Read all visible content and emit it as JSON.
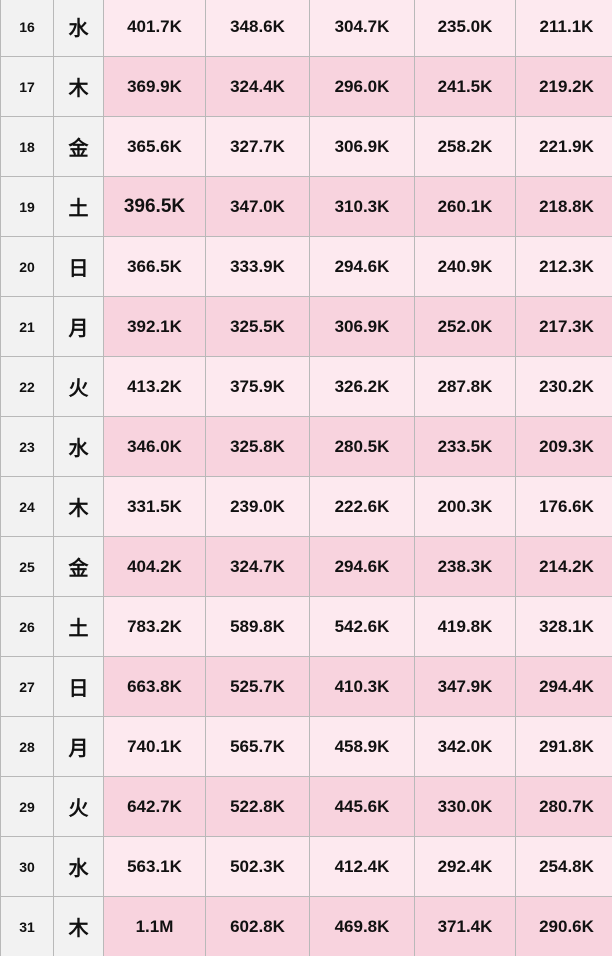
{
  "table": {
    "rows": [
      {
        "day": "16",
        "weekday": "水",
        "values": [
          "401.7K",
          "348.6K",
          "304.7K",
          "235.0K",
          "211.1K"
        ]
      },
      {
        "day": "17",
        "weekday": "木",
        "values": [
          "369.9K",
          "324.4K",
          "296.0K",
          "241.5K",
          "219.2K"
        ]
      },
      {
        "day": "18",
        "weekday": "金",
        "values": [
          "365.6K",
          "327.7K",
          "306.9K",
          "258.2K",
          "221.9K"
        ]
      },
      {
        "day": "19",
        "weekday": "土",
        "values": [
          "396.5K",
          "347.0K",
          "310.3K",
          "260.1K",
          "218.8K"
        ]
      },
      {
        "day": "20",
        "weekday": "日",
        "values": [
          "366.5K",
          "333.9K",
          "294.6K",
          "240.9K",
          "212.3K"
        ]
      },
      {
        "day": "21",
        "weekday": "月",
        "values": [
          "392.1K",
          "325.5K",
          "306.9K",
          "252.0K",
          "217.3K"
        ]
      },
      {
        "day": "22",
        "weekday": "火",
        "values": [
          "413.2K",
          "375.9K",
          "326.2K",
          "287.8K",
          "230.2K"
        ]
      },
      {
        "day": "23",
        "weekday": "水",
        "values": [
          "346.0K",
          "325.8K",
          "280.5K",
          "233.5K",
          "209.3K"
        ]
      },
      {
        "day": "24",
        "weekday": "木",
        "values": [
          "331.5K",
          "239.0K",
          "222.6K",
          "200.3K",
          "176.6K"
        ]
      },
      {
        "day": "25",
        "weekday": "金",
        "values": [
          "404.2K",
          "324.7K",
          "294.6K",
          "238.3K",
          "214.2K"
        ]
      },
      {
        "day": "26",
        "weekday": "土",
        "values": [
          "783.2K",
          "589.8K",
          "542.6K",
          "419.8K",
          "328.1K"
        ]
      },
      {
        "day": "27",
        "weekday": "日",
        "values": [
          "663.8K",
          "525.7K",
          "410.3K",
          "347.9K",
          "294.4K"
        ]
      },
      {
        "day": "28",
        "weekday": "月",
        "values": [
          "740.1K",
          "565.7K",
          "458.9K",
          "342.0K",
          "291.8K"
        ]
      },
      {
        "day": "29",
        "weekday": "火",
        "values": [
          "642.7K",
          "522.8K",
          "445.6K",
          "330.0K",
          "280.7K"
        ]
      },
      {
        "day": "30",
        "weekday": "水",
        "values": [
          "563.1K",
          "502.3K",
          "412.4K",
          "292.4K",
          "254.8K"
        ]
      },
      {
        "day": "31",
        "weekday": "木",
        "values": [
          "1.1M",
          "602.8K",
          "469.8K",
          "371.4K",
          "290.6K"
        ]
      }
    ],
    "colors": {
      "row_light": "#fde9ef",
      "row_dark": "#f8d3de",
      "label_bg": "#f2f2f2",
      "border": "#b9b9b9"
    }
  }
}
